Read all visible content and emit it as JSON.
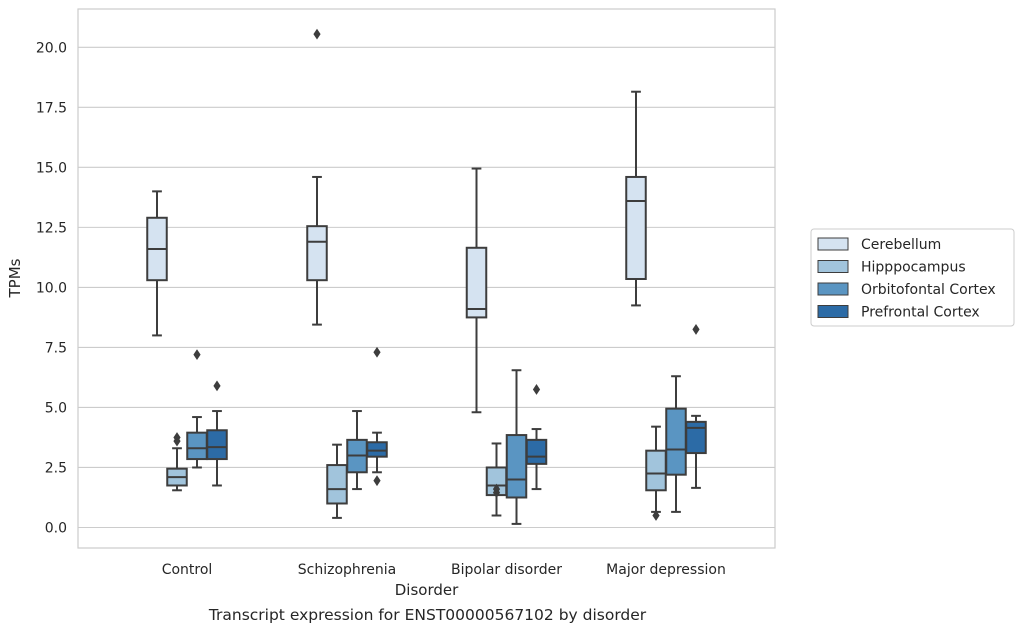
{
  "caption": "Transcript expression for ENST00000567102 by disorder",
  "chart_data": {
    "type": "boxplot",
    "title": "",
    "xlabel": "Disorder",
    "ylabel": "TPMs",
    "ylim": [
      -0.8,
      21.5
    ],
    "yticks": [
      "0.0",
      "2.5",
      "5.0",
      "7.5",
      "10.0",
      "12.5",
      "15.0",
      "17.5",
      "20.0"
    ],
    "ytick_values": [
      0,
      2.5,
      5,
      7.5,
      10,
      12.5,
      15,
      17.5,
      20
    ],
    "grid": "horizontal",
    "legend_position": "right",
    "categories": [
      "Control",
      "Schizophrenia",
      "Bipolar disorder",
      "Major depression"
    ],
    "series": [
      {
        "name": "Cerebellum",
        "color": "#d5e3f1",
        "boxes": [
          {
            "whislo": 8.0,
            "q1": 10.3,
            "med": 11.6,
            "q3": 12.9,
            "whishi": 14.0,
            "fliers": []
          },
          {
            "whislo": 8.45,
            "q1": 10.3,
            "med": 11.9,
            "q3": 12.55,
            "whishi": 14.6,
            "fliers": [
              20.55
            ]
          },
          {
            "whislo": 4.8,
            "q1": 8.75,
            "med": 9.1,
            "q3": 11.65,
            "whishi": 14.95,
            "fliers": []
          },
          {
            "whislo": 9.25,
            "q1": 10.35,
            "med": 13.6,
            "q3": 14.6,
            "whishi": 18.15,
            "fliers": []
          }
        ]
      },
      {
        "name": "Hipppocampus",
        "color": "#a1c4dc",
        "boxes": [
          {
            "whislo": 1.55,
            "q1": 1.75,
            "med": 2.1,
            "q3": 2.45,
            "whishi": 3.3,
            "fliers": [
              3.6,
              3.75
            ]
          },
          {
            "whislo": 0.4,
            "q1": 1.0,
            "med": 1.6,
            "q3": 2.6,
            "whishi": 3.45,
            "fliers": []
          },
          {
            "whislo": 0.5,
            "q1": 1.35,
            "med": 1.75,
            "q3": 2.5,
            "whishi": 3.5,
            "fliers": [
              1.45,
              1.6
            ]
          },
          {
            "whislo": 0.65,
            "q1": 1.55,
            "med": 2.25,
            "q3": 3.2,
            "whishi": 4.2,
            "fliers": [
              0.5
            ]
          }
        ]
      },
      {
        "name": "Orbitofontal Cortex",
        "color": "#5a95c2",
        "boxes": [
          {
            "whislo": 2.5,
            "q1": 2.85,
            "med": 3.3,
            "q3": 3.95,
            "whishi": 4.6,
            "fliers": [
              7.2
            ]
          },
          {
            "whislo": 1.6,
            "q1": 2.3,
            "med": 3.0,
            "q3": 3.65,
            "whishi": 4.85,
            "fliers": []
          },
          {
            "whislo": 0.15,
            "q1": 1.25,
            "med": 2.0,
            "q3": 3.85,
            "whishi": 6.55,
            "fliers": []
          },
          {
            "whislo": 0.65,
            "q1": 2.2,
            "med": 3.25,
            "q3": 4.95,
            "whishi": 6.3,
            "fliers": []
          }
        ]
      },
      {
        "name": "Prefrontal Cortex",
        "color": "#2c6ba6",
        "boxes": [
          {
            "whislo": 1.75,
            "q1": 2.85,
            "med": 3.35,
            "q3": 4.05,
            "whishi": 4.85,
            "fliers": [
              5.9
            ]
          },
          {
            "whislo": 2.3,
            "q1": 2.95,
            "med": 3.2,
            "q3": 3.55,
            "whishi": 3.95,
            "fliers": [
              7.3,
              1.95
            ]
          },
          {
            "whislo": 1.6,
            "q1": 2.65,
            "med": 2.95,
            "q3": 3.65,
            "whishi": 4.1,
            "fliers": [
              5.75
            ]
          },
          {
            "whislo": 1.65,
            "q1": 3.1,
            "med": 4.15,
            "q3": 4.4,
            "whishi": 4.65,
            "fliers": [
              8.25
            ]
          }
        ]
      }
    ]
  }
}
